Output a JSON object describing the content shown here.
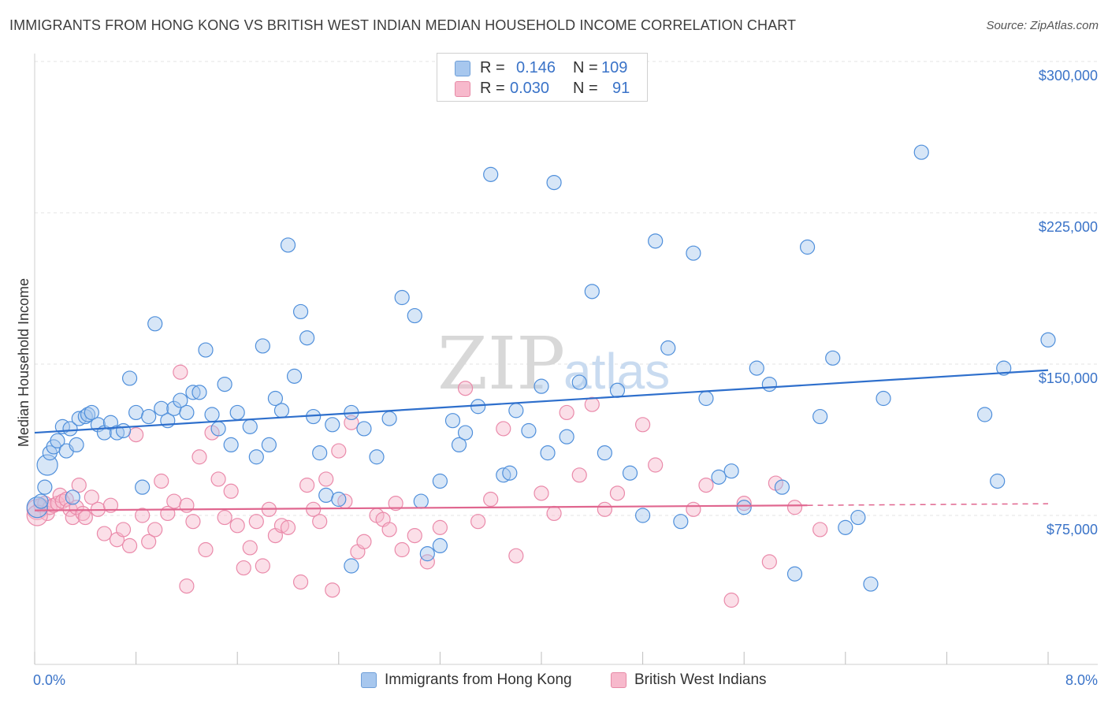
{
  "title": "IMMIGRANTS FROM HONG KONG VS BRITISH WEST INDIAN MEDIAN HOUSEHOLD INCOME CORRELATION CHART",
  "source": "Source: ZipAtlas.com",
  "watermark": {
    "zip": "ZIP",
    "atlas": "atlas"
  },
  "legend": {
    "rows": [
      {
        "r_label": "R =",
        "r_value": "0.146",
        "n_label": "N =",
        "n_value": "109",
        "color": "#a7c7ee",
        "border": "#6f9fd8"
      },
      {
        "r_label": "R =",
        "r_value": "0.030",
        "n_label": "N =",
        "n_value": "91",
        "color": "#f7b9cc",
        "border": "#e78aa6"
      }
    ]
  },
  "bottom_legend": [
    {
      "label": "Immigrants from Hong Kong",
      "color": "#a7c7ee",
      "border": "#6f9fd8"
    },
    {
      "label": "British West Indians",
      "color": "#f7b9cc",
      "border": "#e78aa6"
    }
  ],
  "chart_data": {
    "type": "scatter",
    "xlabel": "",
    "ylabel": "Median Household Income",
    "xlim": [
      0,
      8
    ],
    "ylim": [
      0,
      310000
    ],
    "x_tick_labels": [
      {
        "value": 0,
        "label": "0.0%"
      },
      {
        "value": 8,
        "label": "8.0%"
      }
    ],
    "y_tick_labels": [
      {
        "value": 75000,
        "label": "$75,000"
      },
      {
        "value": 150000,
        "label": "$150,000"
      },
      {
        "value": 225000,
        "label": "$225,000"
      },
      {
        "value": 300000,
        "label": "$300,000"
      }
    ],
    "grid": true,
    "colors": {
      "blue": "#4f8fdb",
      "blue_line": "#2e6fcc",
      "pink": "#ea8aaa",
      "pink_line": "#e0668f"
    },
    "series": [
      {
        "name": "Immigrants from Hong Kong",
        "points": [
          [
            0.02,
            79000
          ],
          [
            0.05,
            82000
          ],
          [
            0.08,
            89000
          ],
          [
            0.1,
            100000
          ],
          [
            0.12,
            106000
          ],
          [
            0.15,
            109000
          ],
          [
            0.18,
            112000
          ],
          [
            0.22,
            119000
          ],
          [
            0.25,
            107000
          ],
          [
            0.28,
            118000
          ],
          [
            0.3,
            84000
          ],
          [
            0.33,
            110000
          ],
          [
            0.35,
            123000
          ],
          [
            0.4,
            124000
          ],
          [
            0.42,
            125000
          ],
          [
            0.45,
            126000
          ],
          [
            0.5,
            120000
          ],
          [
            0.55,
            116000
          ],
          [
            0.6,
            121000
          ],
          [
            0.65,
            116000
          ],
          [
            0.7,
            117000
          ],
          [
            0.75,
            143000
          ],
          [
            0.8,
            126000
          ],
          [
            0.85,
            89000
          ],
          [
            0.9,
            124000
          ],
          [
            0.95,
            170000
          ],
          [
            1.0,
            128000
          ],
          [
            1.05,
            122000
          ],
          [
            1.1,
            128000
          ],
          [
            1.15,
            132000
          ],
          [
            1.2,
            126000
          ],
          [
            1.25,
            136000
          ],
          [
            1.3,
            136000
          ],
          [
            1.35,
            157000
          ],
          [
            1.4,
            125000
          ],
          [
            1.45,
            118000
          ],
          [
            1.5,
            140000
          ],
          [
            1.55,
            110000
          ],
          [
            1.6,
            126000
          ],
          [
            1.7,
            119000
          ],
          [
            1.75,
            104000
          ],
          [
            1.8,
            159000
          ],
          [
            1.85,
            110000
          ],
          [
            1.9,
            133000
          ],
          [
            1.95,
            127000
          ],
          [
            2.0,
            209000
          ],
          [
            2.05,
            144000
          ],
          [
            2.1,
            176000
          ],
          [
            2.15,
            163000
          ],
          [
            2.2,
            124000
          ],
          [
            2.25,
            106000
          ],
          [
            2.3,
            85000
          ],
          [
            2.35,
            120000
          ],
          [
            2.4,
            83000
          ],
          [
            2.5,
            126000
          ],
          [
            2.6,
            118000
          ],
          [
            2.7,
            104000
          ],
          [
            2.8,
            123000
          ],
          [
            2.9,
            183000
          ],
          [
            3.0,
            174000
          ],
          [
            3.05,
            82000
          ],
          [
            3.1,
            56000
          ],
          [
            3.2,
            92000
          ],
          [
            3.3,
            122000
          ],
          [
            3.35,
            110000
          ],
          [
            3.4,
            116000
          ],
          [
            3.5,
            129000
          ],
          [
            3.6,
            244000
          ],
          [
            3.7,
            95000
          ],
          [
            3.75,
            96000
          ],
          [
            3.8,
            127000
          ],
          [
            3.9,
            117000
          ],
          [
            4.0,
            139000
          ],
          [
            4.05,
            106000
          ],
          [
            4.1,
            240000
          ],
          [
            4.2,
            114000
          ],
          [
            4.3,
            141000
          ],
          [
            4.4,
            186000
          ],
          [
            4.5,
            106000
          ],
          [
            4.6,
            137000
          ],
          [
            4.7,
            96000
          ],
          [
            4.8,
            75000
          ],
          [
            4.9,
            211000
          ],
          [
            5.0,
            158000
          ],
          [
            5.1,
            72000
          ],
          [
            5.2,
            205000
          ],
          [
            5.3,
            133000
          ],
          [
            5.4,
            94000
          ],
          [
            5.5,
            97000
          ],
          [
            5.6,
            79000
          ],
          [
            5.7,
            148000
          ],
          [
            5.8,
            140000
          ],
          [
            5.9,
            89000
          ],
          [
            6.0,
            46000
          ],
          [
            6.1,
            208000
          ],
          [
            6.2,
            124000
          ],
          [
            6.3,
            153000
          ],
          [
            6.4,
            69000
          ],
          [
            6.5,
            74000
          ],
          [
            6.6,
            41000
          ],
          [
            6.7,
            133000
          ],
          [
            7.0,
            255000
          ],
          [
            7.5,
            125000
          ],
          [
            7.6,
            92000
          ],
          [
            7.65,
            148000
          ],
          [
            8.0,
            162000
          ],
          [
            2.5,
            50000
          ],
          [
            3.2,
            60000
          ]
        ],
        "trend": {
          "x": [
            0,
            8
          ],
          "y": [
            116000,
            147000
          ]
        }
      },
      {
        "name": "British West Indians",
        "points": [
          [
            0.02,
            78000
          ],
          [
            0.05,
            80000
          ],
          [
            0.08,
            81000
          ],
          [
            0.1,
            76000
          ],
          [
            0.12,
            79000
          ],
          [
            0.15,
            80000
          ],
          [
            0.18,
            81000
          ],
          [
            0.2,
            85000
          ],
          [
            0.22,
            82000
          ],
          [
            0.25,
            83000
          ],
          [
            0.28,
            78000
          ],
          [
            0.3,
            74000
          ],
          [
            0.33,
            79000
          ],
          [
            0.35,
            90000
          ],
          [
            0.38,
            76000
          ],
          [
            0.4,
            74000
          ],
          [
            0.45,
            84000
          ],
          [
            0.5,
            78000
          ],
          [
            0.55,
            66000
          ],
          [
            0.6,
            80000
          ],
          [
            0.65,
            63000
          ],
          [
            0.7,
            68000
          ],
          [
            0.75,
            60000
          ],
          [
            0.8,
            115000
          ],
          [
            0.85,
            75000
          ],
          [
            0.9,
            62000
          ],
          [
            0.95,
            68000
          ],
          [
            1.0,
            92000
          ],
          [
            1.05,
            76000
          ],
          [
            1.1,
            82000
          ],
          [
            1.15,
            146000
          ],
          [
            1.2,
            40000
          ],
          [
            1.25,
            72000
          ],
          [
            1.3,
            104000
          ],
          [
            1.35,
            58000
          ],
          [
            1.4,
            116000
          ],
          [
            1.45,
            93000
          ],
          [
            1.5,
            74000
          ],
          [
            1.55,
            87000
          ],
          [
            1.6,
            70000
          ],
          [
            1.65,
            49000
          ],
          [
            1.7,
            59000
          ],
          [
            1.75,
            72000
          ],
          [
            1.8,
            50000
          ],
          [
            1.85,
            78000
          ],
          [
            1.9,
            65000
          ],
          [
            1.95,
            70000
          ],
          [
            2.0,
            69000
          ],
          [
            2.1,
            42000
          ],
          [
            2.15,
            90000
          ],
          [
            2.2,
            78000
          ],
          [
            2.25,
            72000
          ],
          [
            2.3,
            93000
          ],
          [
            2.35,
            38000
          ],
          [
            2.4,
            107000
          ],
          [
            2.45,
            82000
          ],
          [
            2.5,
            121000
          ],
          [
            2.55,
            57000
          ],
          [
            2.6,
            62000
          ],
          [
            2.7,
            75000
          ],
          [
            2.75,
            73000
          ],
          [
            2.8,
            68000
          ],
          [
            2.85,
            81000
          ],
          [
            2.9,
            58000
          ],
          [
            3.0,
            65000
          ],
          [
            3.1,
            52000
          ],
          [
            3.2,
            69000
          ],
          [
            3.4,
            138000
          ],
          [
            3.5,
            72000
          ],
          [
            3.6,
            83000
          ],
          [
            3.7,
            118000
          ],
          [
            3.8,
            55000
          ],
          [
            4.0,
            86000
          ],
          [
            4.1,
            76000
          ],
          [
            4.2,
            126000
          ],
          [
            4.3,
            95000
          ],
          [
            4.4,
            130000
          ],
          [
            4.5,
            78000
          ],
          [
            4.6,
            86000
          ],
          [
            4.8,
            120000
          ],
          [
            4.9,
            100000
          ],
          [
            5.2,
            78000
          ],
          [
            5.3,
            90000
          ],
          [
            5.5,
            33000
          ],
          [
            5.6,
            81000
          ],
          [
            5.8,
            52000
          ],
          [
            5.85,
            91000
          ],
          [
            6.0,
            79000
          ],
          [
            6.2,
            68000
          ],
          [
            0.02,
            75000
          ],
          [
            1.2,
            80000
          ]
        ],
        "trend": {
          "x": [
            0,
            6.1
          ],
          "y": [
            77500,
            80000
          ]
        },
        "trend_dashed": {
          "x": [
            6.1,
            8
          ],
          "y": [
            80000,
            80800
          ]
        }
      }
    ]
  }
}
